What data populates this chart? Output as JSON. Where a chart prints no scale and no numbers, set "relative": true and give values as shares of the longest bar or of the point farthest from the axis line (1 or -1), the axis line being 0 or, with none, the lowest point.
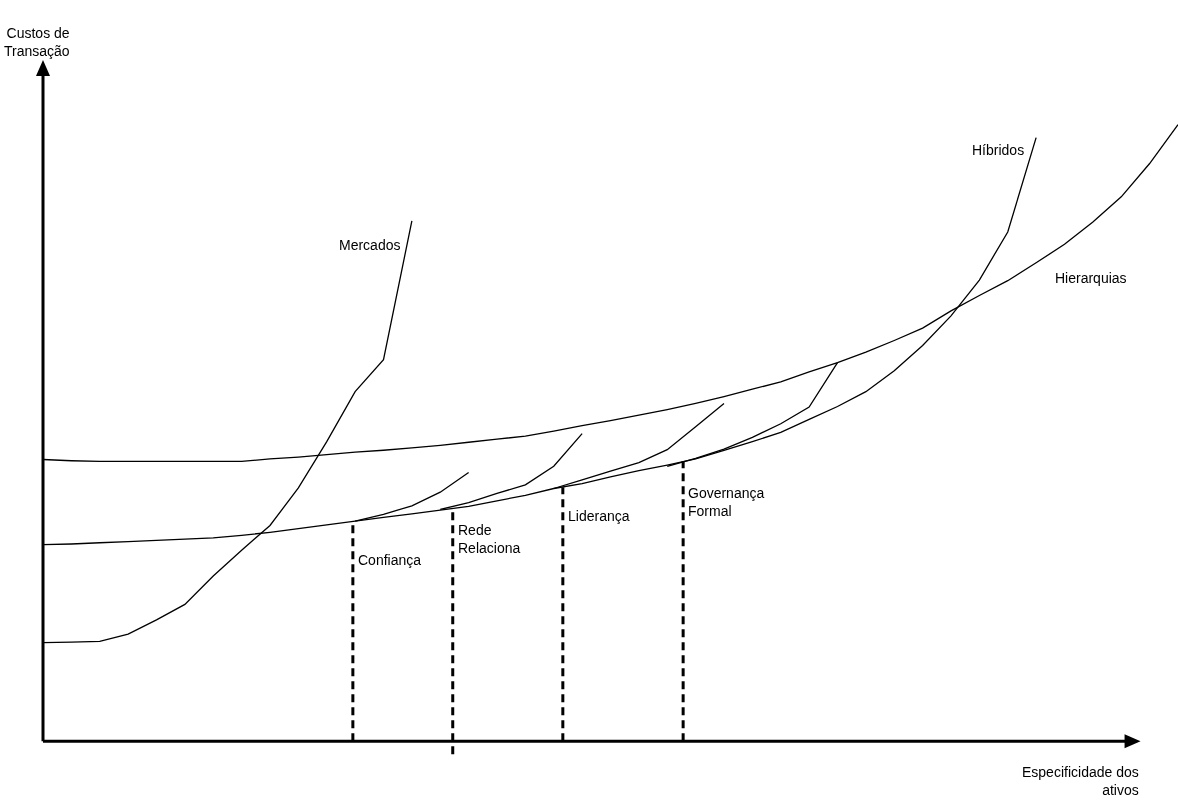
{
  "chart_data": {
    "type": "line",
    "relative": true,
    "legend": false,
    "marker": "none",
    "grid": false,
    "xlabel": "Especificidade dos\nativos",
    "ylabel": "Custos de\nTransação",
    "categories": [
      null,
      null,
      null,
      null,
      null,
      null,
      null,
      null,
      null,
      null,
      null,
      null,
      null,
      null,
      null,
      null,
      null,
      null,
      null,
      null,
      null,
      null,
      null,
      null,
      null,
      null,
      null,
      null,
      null,
      null,
      null,
      null,
      null,
      null,
      null,
      null,
      null,
      null,
      null,
      null,
      null
    ],
    "series": [
      {
        "name": "Mercados",
        "color": "#000000",
        "values": [
          0.16,
          0.161,
          0.162,
          0.174,
          0.197,
          0.222,
          0.268,
          0.31,
          0.35,
          0.411,
          0.486,
          0.567,
          0.619,
          0.844,
          null,
          null,
          null,
          null,
          null,
          null,
          null,
          null,
          null,
          null,
          null,
          null,
          null,
          null,
          null,
          null,
          null,
          null,
          null,
          null,
          null,
          null,
          null,
          null,
          null,
          null,
          null
        ]
      },
      {
        "name": "Híbridos",
        "color": "#000000",
        "values": [
          0.319,
          0.32,
          0.322,
          0.324,
          0.326,
          0.328,
          0.33,
          0.334,
          0.339,
          0.345,
          0.351,
          0.357,
          0.363,
          0.369,
          0.375,
          0.381,
          0.39,
          0.399,
          0.41,
          0.418,
          0.429,
          0.439,
          0.448,
          0.458,
          0.472,
          0.486,
          0.501,
          0.522,
          0.543,
          0.567,
          0.601,
          0.642,
          0.69,
          0.748,
          0.826,
          0.979,
          null,
          null,
          null,
          null,
          null
        ]
      },
      {
        "name": "Hierarquias",
        "color": "#000000",
        "values": [
          0.457,
          0.455,
          0.454,
          0.454,
          0.454,
          0.454,
          0.454,
          0.454,
          0.458,
          0.461,
          0.465,
          0.469,
          0.472,
          0.476,
          0.48,
          0.485,
          0.49,
          0.495,
          0.503,
          0.512,
          0.52,
          0.529,
          0.538,
          0.548,
          0.559,
          0.571,
          0.583,
          0.599,
          0.614,
          0.631,
          0.65,
          0.67,
          0.698,
          0.723,
          0.747,
          0.776,
          0.806,
          0.842,
          0.883,
          0.937,
          1
        ]
      },
      {
        "color": "#000000",
        "values": [
          null,
          null,
          null,
          null,
          null,
          null,
          null,
          null,
          null,
          null,
          null,
          0.357,
          0.368,
          0.382,
          0.404,
          0.436,
          null,
          null,
          null,
          null,
          null,
          null,
          null,
          null,
          null,
          null,
          null,
          null,
          null,
          null,
          null,
          null,
          null,
          null,
          null,
          null,
          null,
          null,
          null,
          null,
          null
        ]
      },
      {
        "color": "#000000",
        "values": [
          null,
          null,
          null,
          null,
          null,
          null,
          null,
          null,
          null,
          null,
          null,
          null,
          null,
          null,
          0.376,
          0.387,
          0.402,
          0.416,
          0.446,
          0.499,
          null,
          null,
          null,
          null,
          null,
          null,
          null,
          null,
          null,
          null,
          null,
          null,
          null,
          null,
          null,
          null,
          null,
          null,
          null,
          null,
          null
        ]
      },
      {
        "color": "#000000",
        "values": [
          null,
          null,
          null,
          null,
          null,
          null,
          null,
          null,
          null,
          null,
          null,
          null,
          null,
          null,
          null,
          null,
          null,
          null,
          0.41,
          0.424,
          0.438,
          0.452,
          0.473,
          0.51,
          0.548,
          null,
          null,
          null,
          null,
          null,
          null,
          null,
          null,
          null,
          null,
          null,
          null,
          null,
          null,
          null,
          null
        ]
      },
      {
        "color": "#000000",
        "values": [
          null,
          null,
          null,
          null,
          null,
          null,
          null,
          null,
          null,
          null,
          null,
          null,
          null,
          null,
          null,
          null,
          null,
          null,
          null,
          null,
          null,
          null,
          0.446,
          0.459,
          0.474,
          0.493,
          0.515,
          0.542,
          0.614,
          null,
          null,
          null,
          null,
          null,
          null,
          null,
          null,
          null,
          null,
          null,
          null
        ]
      }
    ],
    "annotations": [
      "Confiança",
      "Rede\nRelaciona",
      "Liderança",
      "Governança\nFormal"
    ]
  }
}
